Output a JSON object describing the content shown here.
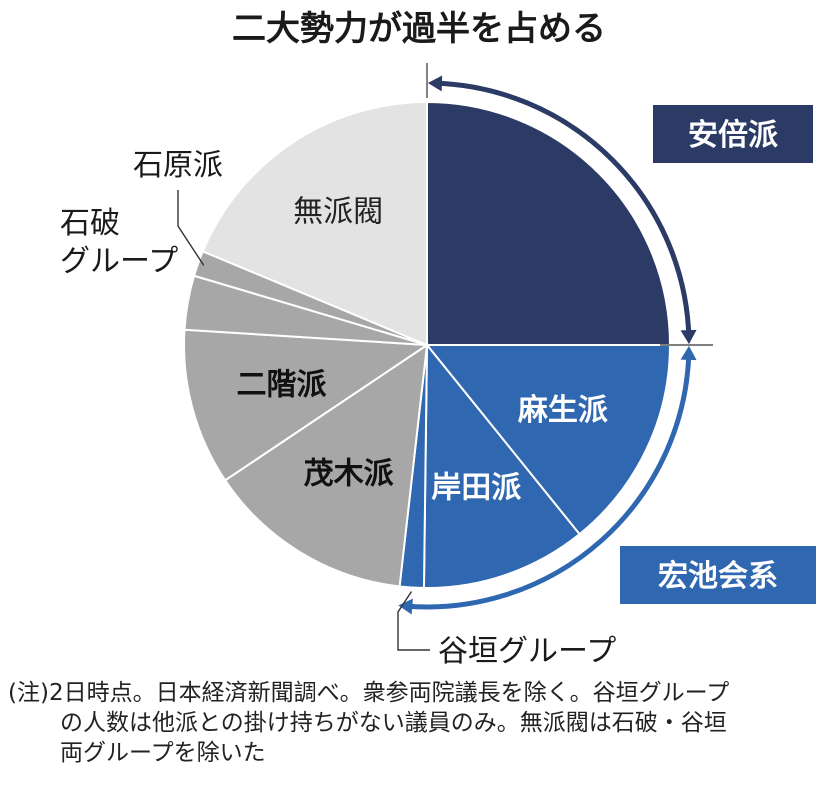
{
  "chart_data": {
    "type": "pie",
    "title": "二大勢力が過半を占める",
    "slices": [
      {
        "label": "安倍派",
        "value": 25.0,
        "color": "#2b3b66",
        "label_color": "#ffffff",
        "label_inside": false
      },
      {
        "label": "麻生派",
        "value": 14.2,
        "color": "#2f68b0",
        "label_color": "#ffffff",
        "label_inside": true
      },
      {
        "label": "岸田派",
        "value": 11.0,
        "color": "#2f68b0",
        "label_color": "#ffffff",
        "label_inside": true
      },
      {
        "label": "谷垣グループ",
        "value": 1.6,
        "color": "#2f68b0",
        "label_color": "#1a1a1a",
        "label_inside": false
      },
      {
        "label": "茂木派",
        "value": 13.8,
        "color": "#a7a7a7",
        "label_color": "#111111",
        "label_inside": true
      },
      {
        "label": "二階派",
        "value": 10.4,
        "color": "#a7a7a7",
        "label_color": "#111111",
        "label_inside": true
      },
      {
        "label": "石破グループ",
        "value": 3.6,
        "color": "#a7a7a7",
        "label_color": "#1a1a1a",
        "label_inside": false
      },
      {
        "label": "石原派",
        "value": 1.7,
        "color": "#a7a7a7",
        "label_color": "#1a1a1a",
        "label_inside": false
      },
      {
        "label": "無派閥",
        "value": 18.7,
        "color": "#e3e3e3",
        "label_color": "#222222",
        "label_inside": true
      }
    ],
    "groups": [
      {
        "label": "安倍派",
        "color": "#2b3b66"
      },
      {
        "label": "宏池会系",
        "color": "#2f68b0"
      }
    ],
    "external_labels": {
      "ishihara": "石原派",
      "ishiba_line1": "石破",
      "ishiba_line2": "グループ",
      "tanigaki": "谷垣グループ"
    }
  },
  "note": {
    "line1": "(注)2日時点。日本経済新聞調べ。衆参両院議長を除く。谷垣グループ",
    "line2": "の人数は他派との掛け持ちがない議員のみ。無派閥は石破・谷垣",
    "line3": "両グループを除いた"
  }
}
